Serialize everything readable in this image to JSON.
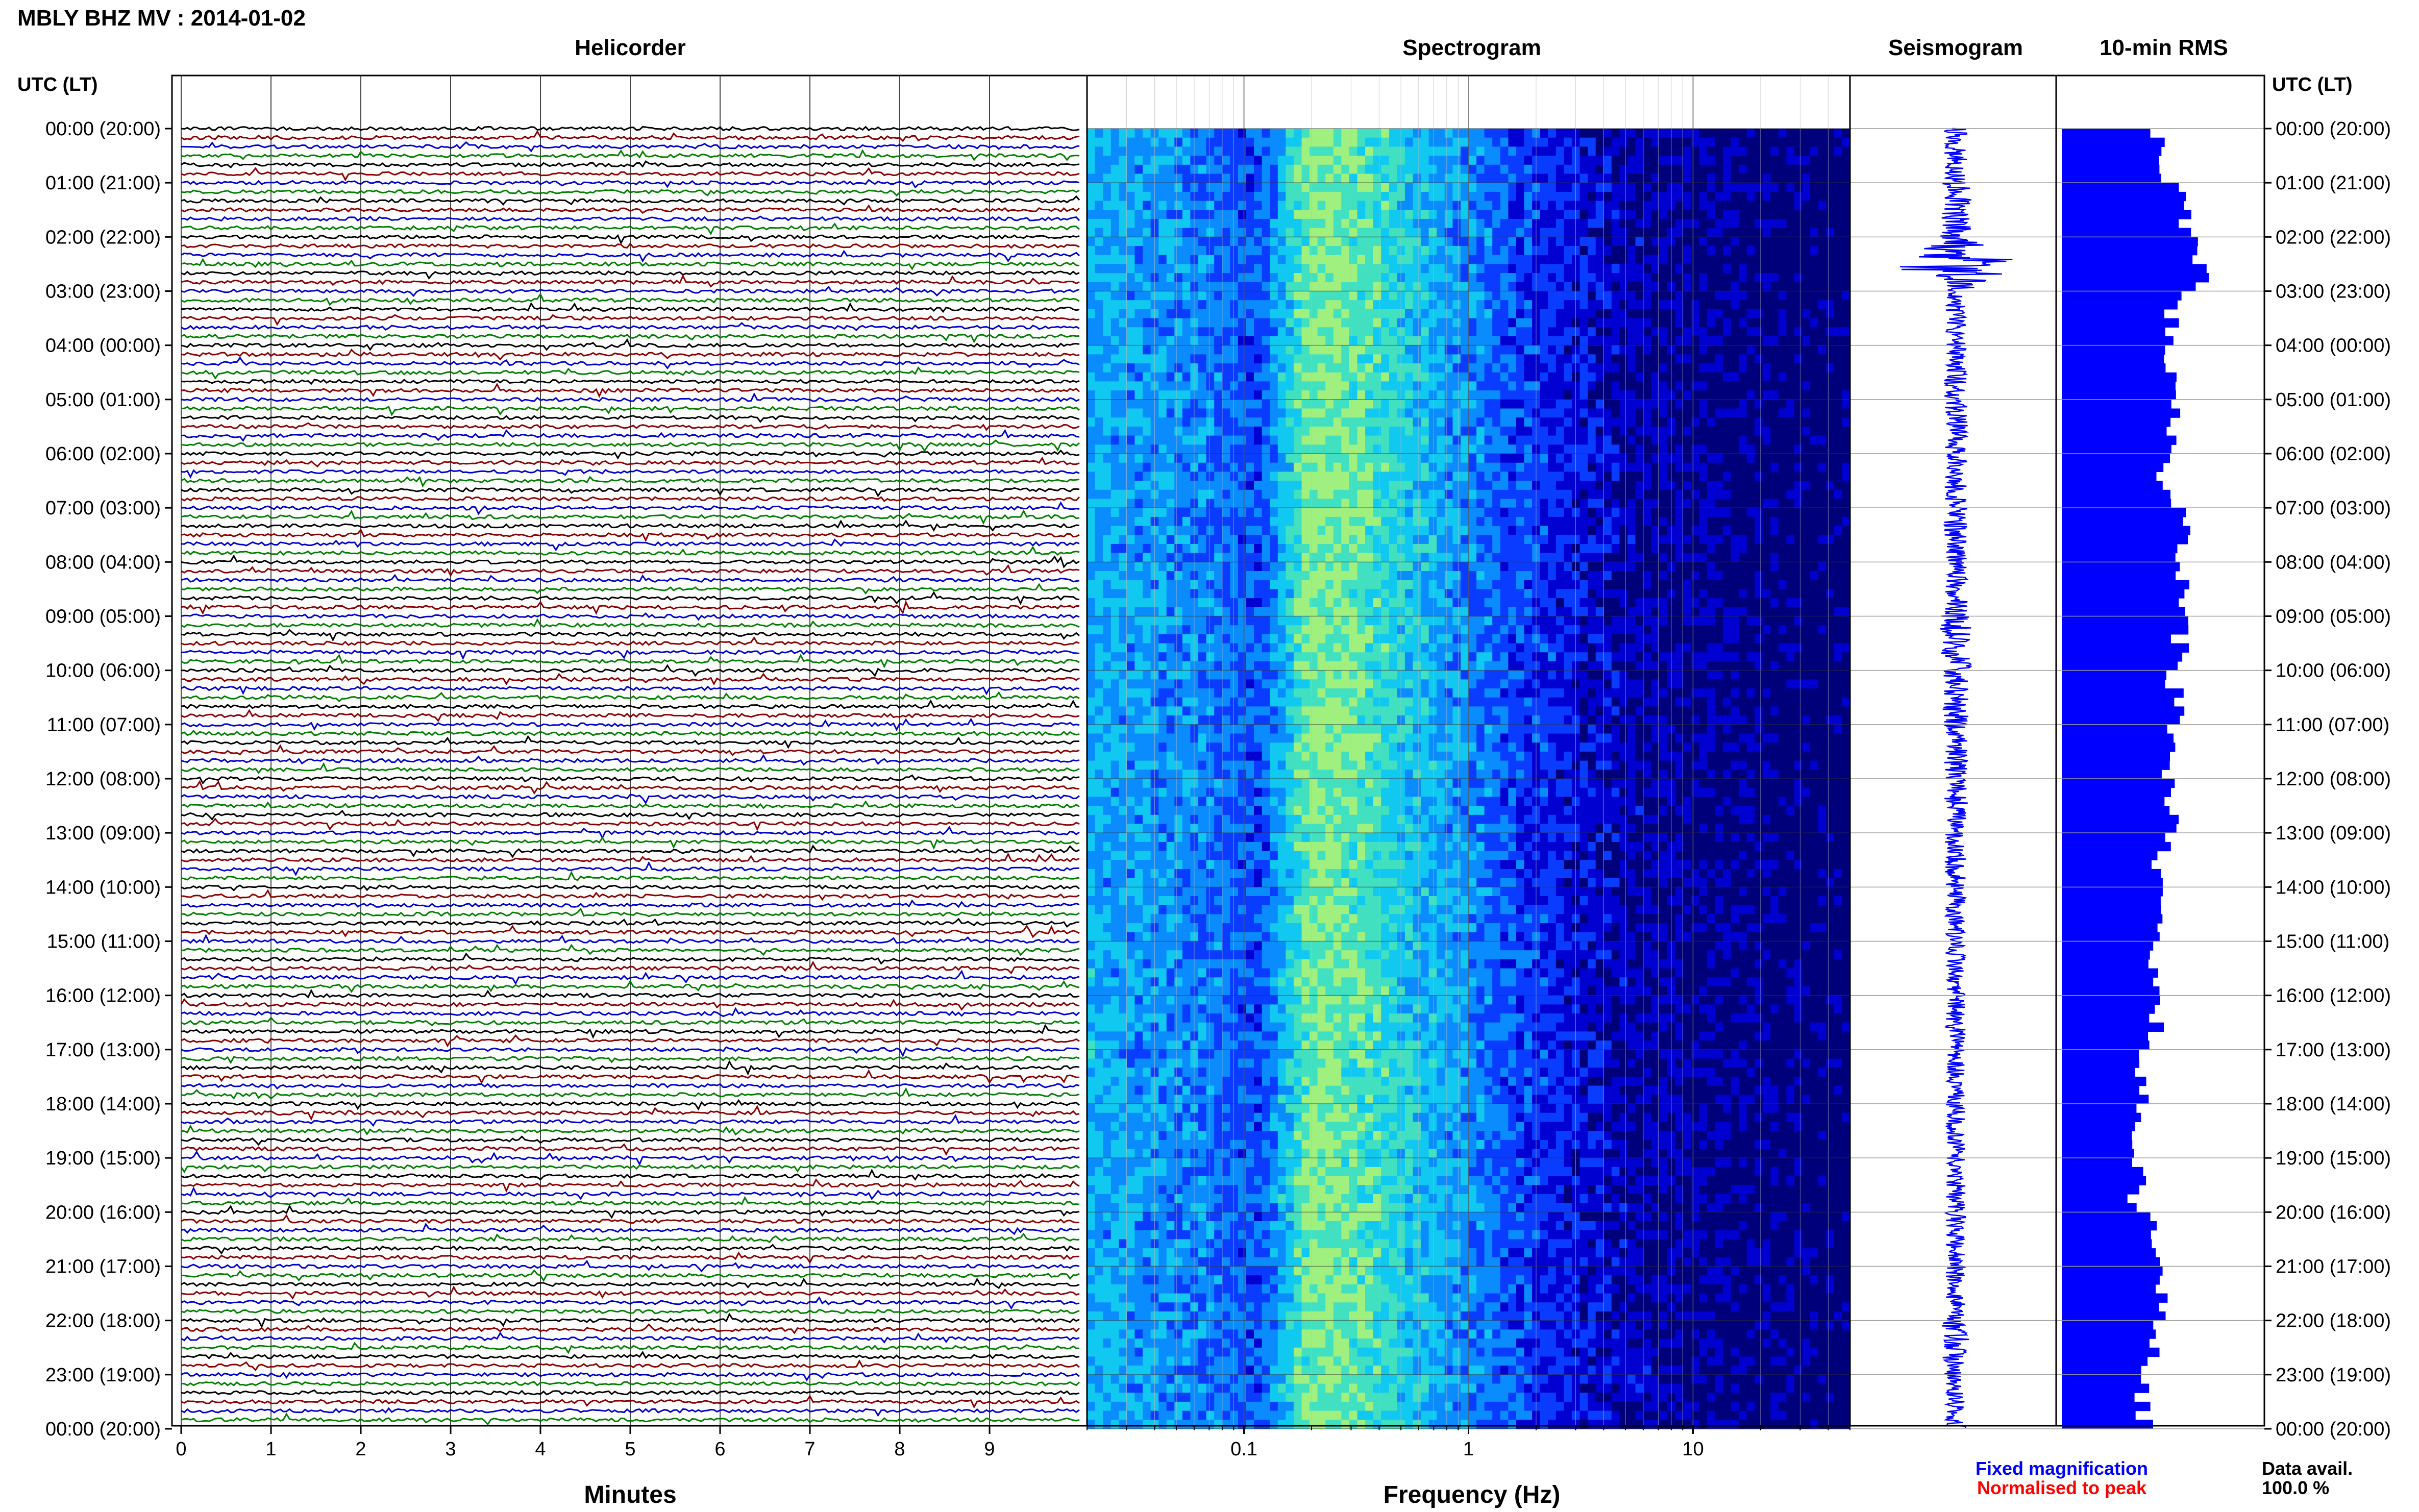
{
  "page": {
    "title": "MBLY BHZ MV : 2014-01-02"
  },
  "panels": {
    "helicorder_title": "Helicorder",
    "spectrogram_title": "Spectrogram",
    "seismogram_title": "Seismogram",
    "rms_title": "10-min RMS"
  },
  "axis": {
    "time_label_left": "UTC (LT)",
    "time_label_right": "UTC (LT)",
    "minutes_xlabel": "Minutes",
    "frequency_xlabel": "Frequency (Hz)"
  },
  "legend": {
    "fixed": "Fixed magnification",
    "normalised": "Normalised to peak",
    "fixed_color": "#0000ff",
    "normalised_color": "#ff0000"
  },
  "data_availability": {
    "label": "Data avail.",
    "value": "100.0 %"
  },
  "chart_data": {
    "type": "heatmap",
    "hour_labels": [
      "00:00 (20:00)",
      "01:00 (21:00)",
      "02:00 (22:00)",
      "03:00 (23:00)",
      "04:00 (00:00)",
      "05:00 (01:00)",
      "06:00 (02:00)",
      "07:00 (03:00)",
      "08:00 (04:00)",
      "09:00 (05:00)",
      "10:00 (06:00)",
      "11:00 (07:00)",
      "12:00 (08:00)",
      "13:00 (09:00)",
      "14:00 (10:00)",
      "15:00 (11:00)",
      "16:00 (12:00)",
      "17:00 (13:00)",
      "18:00 (14:00)",
      "19:00 (15:00)",
      "20:00 (16:00)",
      "21:00 (17:00)",
      "22:00 (18:00)",
      "23:00 (19:00)",
      "00:00 (20:00)"
    ],
    "helicorder": {
      "minute_ticks": [
        "0",
        "1",
        "2",
        "3",
        "4",
        "5",
        "6",
        "7",
        "8",
        "9"
      ],
      "xlim": [
        0,
        10
      ],
      "traces": 144,
      "trace_colors": [
        "#000000",
        "#8b0000",
        "#0000cd",
        "#007f00"
      ]
    },
    "spectrogram": {
      "xscale": "log",
      "xlim": [
        0.02,
        50
      ],
      "freq_ticks": [
        "0.1",
        "1",
        "10"
      ],
      "colormap": [
        "#00007a",
        "#0000d0",
        "#0a3cff",
        "#0a8cff",
        "#10c8f0",
        "#40e0c0",
        "#a0f080"
      ],
      "band_energy": [
        {
          "f": 0.02,
          "level": 0.58
        },
        {
          "f": 0.05,
          "level": 0.52
        },
        {
          "f": 0.08,
          "level": 0.44
        },
        {
          "f": 0.12,
          "level": 0.38
        },
        {
          "f": 0.2,
          "level": 0.9
        },
        {
          "f": 0.3,
          "level": 0.84
        },
        {
          "f": 0.5,
          "level": 0.68
        },
        {
          "f": 1,
          "level": 0.5
        },
        {
          "f": 2,
          "level": 0.32
        },
        {
          "f": 5,
          "level": 0.16
        },
        {
          "f": 10,
          "level": 0.12
        },
        {
          "f": 20,
          "level": 0.08
        },
        {
          "f": 50,
          "level": 0.02
        }
      ]
    },
    "seismogram": {
      "color": "#0000ff",
      "hourly_amplitude": [
        0.12,
        0.16,
        0.55,
        0.1,
        0.12,
        0.13,
        0.11,
        0.13,
        0.12,
        0.16,
        0.13,
        0.12,
        0.13,
        0.11,
        0.1,
        0.1,
        0.1,
        0.09,
        0.1,
        0.1,
        0.1,
        0.1,
        0.14,
        0.1
      ]
    },
    "rms": {
      "color": "#0000ff",
      "xlim": [
        0,
        1
      ],
      "bar_count": 144,
      "hourly_level": [
        0.55,
        0.7,
        0.8,
        0.65,
        0.62,
        0.65,
        0.58,
        0.72,
        0.7,
        0.68,
        0.66,
        0.62,
        0.62,
        0.58,
        0.55,
        0.52,
        0.54,
        0.46,
        0.46,
        0.44,
        0.52,
        0.58,
        0.52,
        0.48
      ]
    }
  }
}
